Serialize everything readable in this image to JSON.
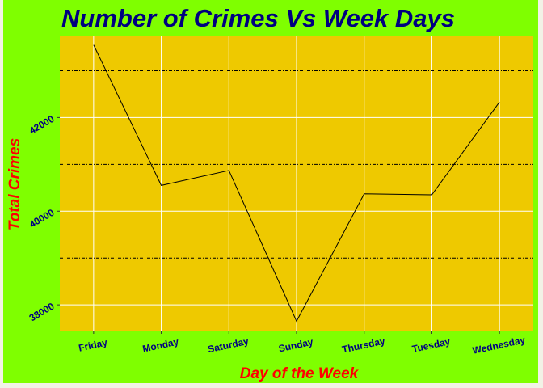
{
  "chart_data": {
    "type": "line",
    "title": "Number of Crimes Vs Week Days",
    "xlabel": "Day of the Week",
    "ylabel": "Total Crimes",
    "categories": [
      "Friday",
      "Monday",
      "Saturday",
      "Sunday",
      "Thursday",
      "Tuesday",
      "Wednesday"
    ],
    "series": [
      {
        "values": [
          43550,
          40550,
          40870,
          37650,
          40370,
          40350,
          42330
        ]
      }
    ],
    "ylim": [
      37450,
      43750
    ],
    "y_ticks": [
      38000,
      40000,
      42000
    ],
    "y_minor_dashed": [
      39000,
      41000,
      43000
    ],
    "grid": true,
    "legend": "none",
    "colors": {
      "background": "#7fff00",
      "panel": "#eec900",
      "grid": "#ffffff",
      "minor_grid": "#000000",
      "line": "#000000",
      "title": "#000080",
      "axis_title": "#ff0000",
      "tick_labels": "#000080"
    }
  }
}
